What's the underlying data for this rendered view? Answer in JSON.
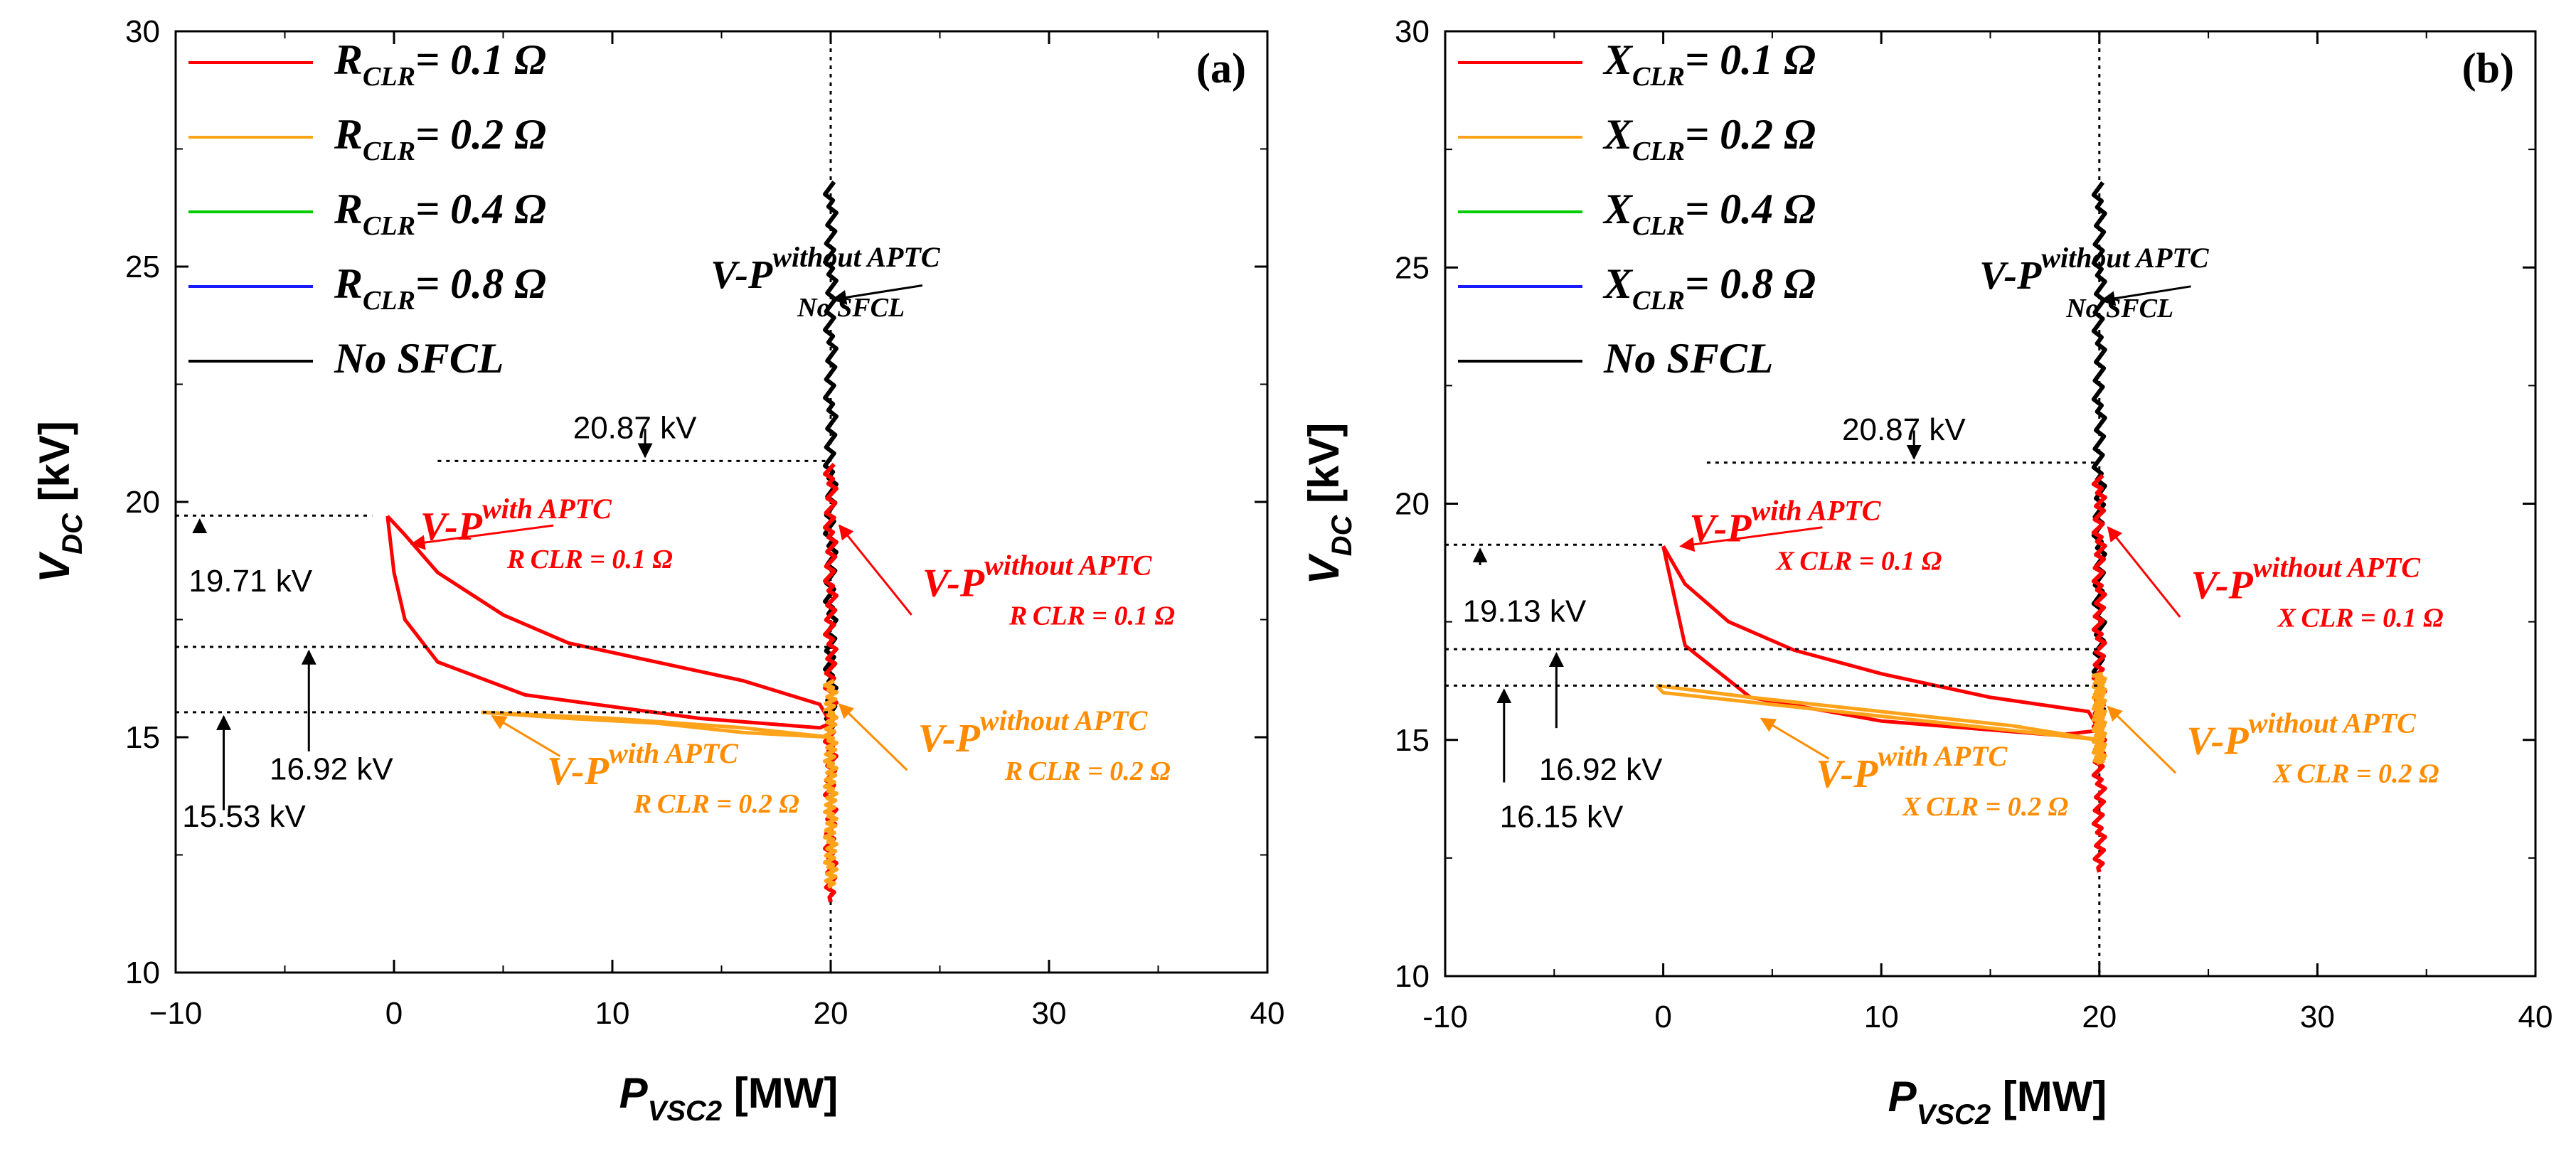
{
  "chart_data": [
    {
      "type": "line",
      "panel_label": "(a)",
      "ylabel": {
        "main": "V",
        "sub": "DC",
        "unit": " [kV]"
      },
      "xlabel": {
        "main": "P",
        "sub": "VSC2",
        "unit": " [MW]"
      },
      "xlim": [
        -10,
        40
      ],
      "ylim": [
        10,
        30
      ],
      "xticks": [
        "−10",
        "0",
        "10",
        "20",
        "30",
        "40"
      ],
      "yticks": [
        "10",
        "15",
        "20",
        "25",
        "30"
      ],
      "legend_position": "top-left",
      "legend": [
        {
          "prefix": "R",
          "sub": "CLR",
          "suffix": "= 0.1 Ω",
          "color": "#ff0000"
        },
        {
          "prefix": "R",
          "sub": "CLR",
          "suffix": "= 0.2 Ω",
          "color": "#ffa31a"
        },
        {
          "prefix": "R",
          "sub": "CLR",
          "suffix": "= 0.4 Ω",
          "color": "#00cc00"
        },
        {
          "prefix": "R",
          "sub": "CLR",
          "suffix": "= 0.8 Ω",
          "color": "#1a1aff"
        },
        {
          "prefix": "No SFCL",
          "sub": "",
          "suffix": "",
          "color": "#000000"
        }
      ],
      "reference_x": 20,
      "levels": [
        {
          "value": 20.87,
          "label": "20.87 kV"
        },
        {
          "value": 19.71,
          "label": "19.71 kV"
        },
        {
          "value": 16.92,
          "label": "16.92 kV"
        },
        {
          "value": 15.53,
          "label": "15.53 kV"
        }
      ],
      "annotations": [
        {
          "base": "V-P",
          "sup": "without APTC",
          "sub": "No SFCL",
          "color": "#000000"
        },
        {
          "base": "V-P",
          "sup": "with APTC",
          "sub": "R CLR = 0.1 Ω",
          "color": "#ff0000"
        },
        {
          "base": "V-P",
          "sup": "without APTC",
          "sub": "R CLR = 0.1 Ω",
          "color": "#ff0000"
        },
        {
          "base": "V-P",
          "sup": "with APTC",
          "sub": "R CLR = 0.2 Ω",
          "color": "#ff8c00"
        },
        {
          "base": "V-P",
          "sup": "without APTC",
          "sub": "R CLR = 0.2 Ω",
          "color": "#ff8c00"
        }
      ],
      "series": [
        {
          "name": "No SFCL",
          "color": "#000000",
          "x": [
            20,
            20,
            20,
            20
          ],
          "y": [
            15,
            20.87,
            24,
            26.8
          ]
        },
        {
          "name": "R_CLR = 0.1 Ω (with APTC)",
          "color": "#ff0000",
          "x": [
            -0.3,
            0.5,
            2,
            5,
            8,
            12,
            16,
            19.5,
            20,
            19.5,
            14,
            6,
            2,
            0.5,
            0,
            -0.3
          ],
          "y": [
            19.7,
            19.3,
            18.5,
            17.6,
            17.0,
            16.6,
            16.2,
            15.7,
            15.3,
            15.2,
            15.4,
            15.9,
            16.6,
            17.5,
            18.5,
            19.7
          ]
        },
        {
          "name": "R_CLR = 0.1 Ω (without APTC)",
          "color": "#ff0000",
          "x": [
            20,
            20,
            20,
            20
          ],
          "y": [
            11.5,
            15,
            18,
            20.8
          ]
        },
        {
          "name": "R_CLR = 0.2 Ω (with APTC)",
          "color": "#ffa31a",
          "x": [
            4,
            8,
            12,
            16,
            20,
            16,
            10,
            4
          ],
          "y": [
            15.53,
            15.4,
            15.3,
            15.1,
            15.0,
            15.2,
            15.4,
            15.53
          ]
        },
        {
          "name": "R_CLR = 0.2 Ω (without APTC)",
          "color": "#ffa31a",
          "x": [
            20,
            20,
            20,
            20
          ],
          "y": [
            11.8,
            13.5,
            15.0,
            16.2
          ]
        }
      ]
    },
    {
      "type": "line",
      "panel_label": "(b)",
      "ylabel": {
        "main": "V",
        "sub": "DC",
        "unit": " [kV]"
      },
      "xlabel": {
        "main": "P",
        "sub": "VSC2",
        "unit": " [MW]"
      },
      "xlim": [
        -10,
        40
      ],
      "ylim": [
        10,
        30
      ],
      "xticks": [
        "-10",
        "0",
        "10",
        "20",
        "30",
        "40"
      ],
      "yticks": [
        "10",
        "15",
        "20",
        "25",
        "30"
      ],
      "legend_position": "top-left",
      "legend": [
        {
          "prefix": "X",
          "sub": "CLR",
          "suffix": "= 0.1 Ω",
          "color": "#ff0000"
        },
        {
          "prefix": "X",
          "sub": "CLR",
          "suffix": "= 0.2 Ω",
          "color": "#ffa31a"
        },
        {
          "prefix": "X",
          "sub": "CLR",
          "suffix": "= 0.4 Ω",
          "color": "#00cc00"
        },
        {
          "prefix": "X",
          "sub": "CLR",
          "suffix": "= 0.8 Ω",
          "color": "#1a1aff"
        },
        {
          "prefix": "No SFCL",
          "sub": "",
          "suffix": "",
          "color": "#000000"
        }
      ],
      "reference_x": 20,
      "levels": [
        {
          "value": 20.87,
          "label": "20.87 kV"
        },
        {
          "value": 19.13,
          "label": "19.13 kV"
        },
        {
          "value": 16.92,
          "label": "16.92 kV"
        },
        {
          "value": 16.15,
          "label": "16.15 kV"
        }
      ],
      "annotations": [
        {
          "base": "V-P",
          "sup": "without APTC",
          "sub": "No SFCL",
          "color": "#000000"
        },
        {
          "base": "V-P",
          "sup": "with APTC",
          "sub": "X CLR = 0.1 Ω",
          "color": "#ff0000"
        },
        {
          "base": "V-P",
          "sup": "without APTC",
          "sub": "X CLR = 0.1 Ω",
          "color": "#ff0000"
        },
        {
          "base": "V-P",
          "sup": "with APTC",
          "sub": "X CLR = 0.2 Ω",
          "color": "#ff8c00"
        },
        {
          "base": "V-P",
          "sup": "without APTC",
          "sub": "X CLR = 0.2 Ω",
          "color": "#ff8c00"
        }
      ],
      "series": [
        {
          "name": "No SFCL",
          "color": "#000000",
          "x": [
            20,
            20,
            20,
            20
          ],
          "y": [
            15,
            20.87,
            24,
            26.8
          ]
        },
        {
          "name": "X_CLR = 0.1 Ω (with APTC)",
          "color": "#ff0000",
          "x": [
            0,
            1,
            3,
            6,
            10,
            15,
            19.5,
            20,
            18,
            10,
            4,
            1,
            0
          ],
          "y": [
            19.1,
            18.3,
            17.5,
            16.9,
            16.4,
            15.9,
            15.6,
            15.2,
            15.1,
            15.4,
            15.9,
            17.0,
            19.1
          ]
        },
        {
          "name": "X_CLR = 0.1 Ω (without APTC)",
          "color": "#ff0000",
          "x": [
            20,
            20,
            20,
            20
          ],
          "y": [
            12.2,
            15,
            18,
            20.6
          ]
        },
        {
          "name": "X_CLR = 0.2 Ω (with APTC)",
          "color": "#ffa31a",
          "x": [
            -0.3,
            4,
            10,
            16,
            20,
            16,
            10,
            4,
            0,
            -0.3
          ],
          "y": [
            16.15,
            15.9,
            15.6,
            15.3,
            15.0,
            15.2,
            15.5,
            15.8,
            16.0,
            16.15
          ]
        },
        {
          "name": "X_CLR = 0.2 Ω (without APTC)",
          "color": "#ffa31a",
          "x": [
            20,
            20,
            20,
            20
          ],
          "y": [
            14.5,
            15.2,
            15.8,
            16.4
          ]
        }
      ]
    }
  ]
}
